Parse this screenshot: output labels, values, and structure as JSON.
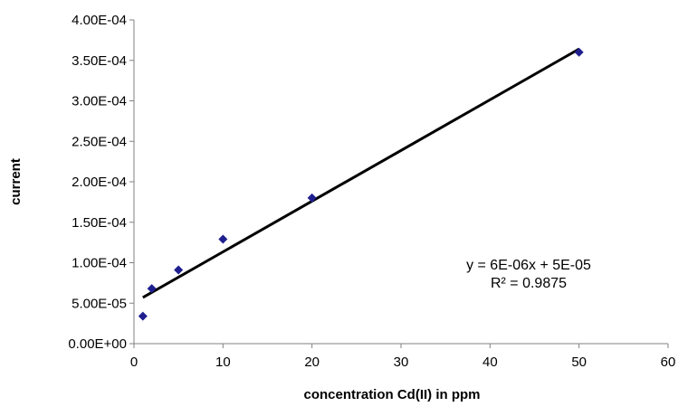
{
  "chart_data": {
    "type": "scatter",
    "title": "",
    "xlabel": "concentration Cd(II) in ppm",
    "ylabel": "current",
    "xlim": [
      0,
      60
    ],
    "ylim": [
      0,
      0.0004
    ],
    "x_ticks": [
      0,
      10,
      20,
      30,
      40,
      50,
      60
    ],
    "y_ticks": [
      0,
      5e-05,
      0.0001,
      0.00015,
      0.0002,
      0.00025,
      0.0003,
      0.00035,
      0.0004
    ],
    "x_tick_labels": [
      "0",
      "10",
      "20",
      "30",
      "40",
      "50",
      "60"
    ],
    "y_tick_labels": [
      "0.00E+00",
      "5.00E-05",
      "1.00E-04",
      "1.50E-04",
      "2.00E-04",
      "2.50E-04",
      "3.00E-04",
      "3.50E-04",
      "4.00E-04"
    ],
    "grid": false,
    "legend": "none",
    "series": [
      {
        "marker": "diamond",
        "color": "#1f1f8f",
        "points": [
          {
            "x": 1,
            "y": 3.4e-05
          },
          {
            "x": 2,
            "y": 6.8e-05
          },
          {
            "x": 5,
            "y": 9.1e-05
          },
          {
            "x": 10,
            "y": 0.000129
          },
          {
            "x": 20,
            "y": 0.00018
          },
          {
            "x": 50,
            "y": 0.00036
          }
        ]
      }
    ],
    "trendline": {
      "color": "#000000",
      "x_range": [
        1,
        50
      ],
      "y_range": [
        5.7e-05,
        0.000364
      ]
    },
    "annotations": [
      {
        "text": "y = 6E-06x + 5E-05"
      },
      {
        "text": "R² = 0.9875"
      }
    ]
  }
}
